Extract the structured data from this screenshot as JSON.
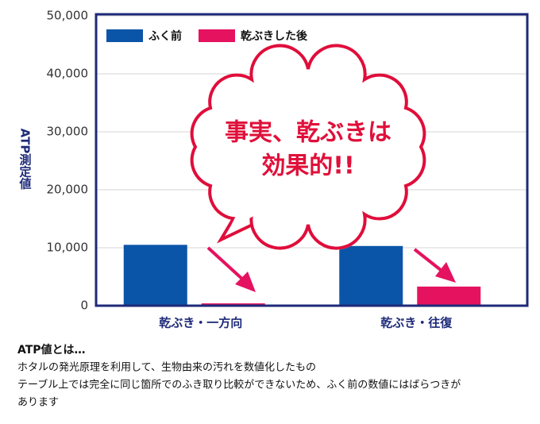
{
  "chart_data": {
    "type": "bar",
    "y_label": "ATP測定値",
    "categories": [
      "乾ぶき・一方向",
      "乾ぶき・往復"
    ],
    "series": [
      {
        "name": "ふく前",
        "color": "#0b55a8",
        "values": [
          10500,
          10300
        ]
      },
      {
        "name": "乾ぶきした後",
        "color": "#e5125f",
        "values": [
          400,
          3300
        ]
      }
    ],
    "ylim": [
      0,
      50000
    ],
    "yticks": [
      0,
      {
        "value": 10000,
        "label": "10,000"
      },
      {
        "value": 20000,
        "label": "20,000"
      },
      {
        "value": 30000,
        "label": "30,000"
      },
      {
        "value": 40000,
        "label": "40,000"
      },
      {
        "value": 50000,
        "label": "50,000"
      }
    ],
    "grid": true,
    "legend": "upper left",
    "callout": [
      "事実、乾ぶきは",
      "効果的!!"
    ]
  },
  "note": {
    "title": "ATP値とは…",
    "lines": [
      "ホタルの発光原理を利用して、生物由来の汚れを数値化したもの",
      "テーブル上では完全に同じ箇所でのふき取り比較ができないため、ふく前の数値にはばらつきが",
      "あります"
    ]
  }
}
